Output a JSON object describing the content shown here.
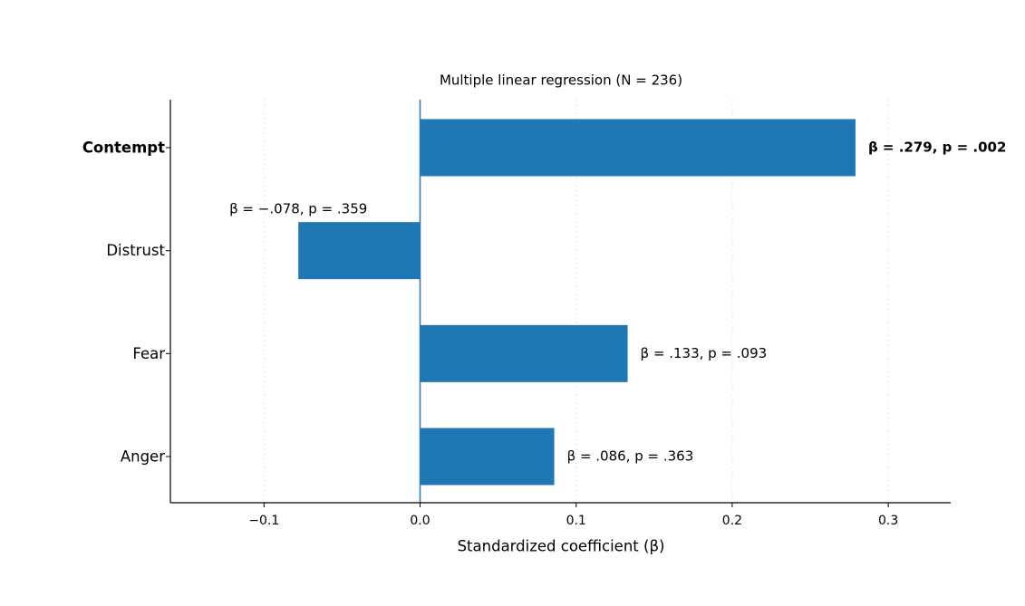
{
  "chart_data": {
    "type": "barh",
    "title": "Multiple linear regression (N = 236)",
    "x_label": "Standardized coefficient (β)",
    "categories": [
      "Contempt",
      "Distrust",
      "Fear",
      "Anger"
    ],
    "values": [
      0.279,
      -0.078,
      0.133,
      0.086
    ],
    "value_labels": [
      "β = .279, p = .002",
      "β = −.078, p = .359",
      "β = .133, p = .093",
      "β = .086, p = .363"
    ],
    "bold": [
      true,
      false,
      false,
      false
    ],
    "color": "#1f77b4",
    "xlim": [
      -0.16,
      0.34
    ],
    "xticks": [
      {
        "value": -0.1,
        "label": "−0.1"
      },
      {
        "value": 0,
        "label": "0.0"
      },
      0.1,
      0.2,
      0.3
    ],
    "grid": true
  }
}
